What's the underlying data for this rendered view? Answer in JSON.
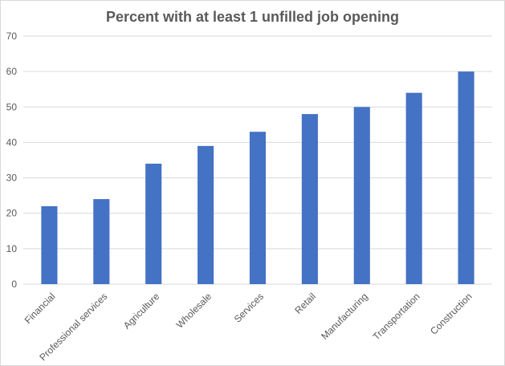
{
  "chart_data": {
    "type": "bar",
    "title": "Percent with at least 1 unfilled job opening",
    "categories": [
      "Financial",
      "Professional services",
      "Agriculture",
      "Wholesale",
      "Services",
      "Retail",
      "Manufacturing",
      "Transportation",
      "Construction"
    ],
    "values": [
      22,
      24,
      34,
      39,
      43,
      48,
      50,
      54,
      60
    ],
    "xlabel": "",
    "ylabel": "",
    "ylim": [
      0,
      70
    ],
    "yticks": [
      0,
      10,
      20,
      30,
      40,
      50,
      60,
      70
    ],
    "grid": true,
    "legend": "none",
    "bar_color": "#4472C4",
    "grid_color": "#d9d9d9"
  }
}
